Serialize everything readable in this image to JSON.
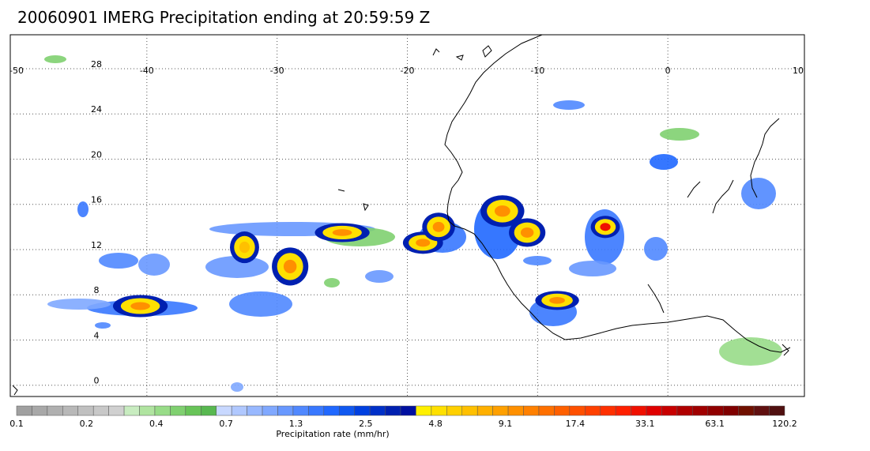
{
  "title": "20060901 IMERG Precipitation ending at 20:59:59 Z",
  "map": {
    "lon_range": [
      -50,
      10
    ],
    "lat_range": [
      -1,
      31
    ],
    "lon_ticks": [
      -50,
      -40,
      -30,
      -20,
      -10,
      0,
      10
    ],
    "lat_ticks": [
      0,
      4,
      8,
      12,
      16,
      20,
      24,
      28
    ],
    "grid": true
  },
  "rain_cells": [
    {
      "lon": -29.0,
      "lat": 10.5,
      "rx": 1.0,
      "ry": 1.2,
      "level": 4
    },
    {
      "lon": -25.0,
      "lat": 13.5,
      "rx": 1.5,
      "ry": 0.6,
      "level": 4
    },
    {
      "lon": -18.8,
      "lat": 12.6,
      "rx": 1.1,
      "ry": 0.7,
      "level": 4
    },
    {
      "lon": -17.6,
      "lat": 14.0,
      "rx": 0.9,
      "ry": 0.9,
      "level": 4
    },
    {
      "lon": -12.7,
      "lat": 15.4,
      "rx": 1.2,
      "ry": 1.0,
      "level": 4
    },
    {
      "lon": -10.8,
      "lat": 13.5,
      "rx": 1.0,
      "ry": 0.9,
      "level": 4
    },
    {
      "lon": -4.8,
      "lat": 14.0,
      "rx": 0.8,
      "ry": 0.7,
      "level": 5
    },
    {
      "lon": -8.5,
      "lat": 7.5,
      "rx": 1.2,
      "ry": 0.6,
      "level": 4
    },
    {
      "lon": -40.5,
      "lat": 7.0,
      "rx": 1.5,
      "ry": 0.7,
      "level": 4
    },
    {
      "lon": -32.5,
      "lat": 12.2,
      "rx": 0.8,
      "ry": 1.0,
      "level": 3
    }
  ],
  "colorbar": {
    "colors": [
      "#a0a0a0",
      "#a8a8a8",
      "#b0b0b0",
      "#b8b8b8",
      "#c0c0c0",
      "#c8c8c8",
      "#d0d0d0",
      "#c8ecc0",
      "#b0e4a0",
      "#98dc88",
      "#80d070",
      "#68c458",
      "#58b850",
      "#c8d8ff",
      "#b0c8ff",
      "#98b8ff",
      "#80a8ff",
      "#6898ff",
      "#5088ff",
      "#3878ff",
      "#2068ff",
      "#1058f0",
      "#0040e0",
      "#0030c8",
      "#0020b0",
      "#0010a0",
      "#fff000",
      "#ffe000",
      "#ffd000",
      "#ffc000",
      "#ffb000",
      "#ffa000",
      "#ff9000",
      "#ff8000",
      "#ff7000",
      "#ff6000",
      "#ff5000",
      "#ff4000",
      "#ff3000",
      "#ff2000",
      "#f01000",
      "#e00000",
      "#c80000",
      "#b00000",
      "#a00000",
      "#900000",
      "#800000",
      "#701000",
      "#601010",
      "#501010"
    ],
    "tick_labels": [
      "0.1",
      "0.2",
      "0.4",
      "0.7",
      "1.3",
      "2.5",
      "4.8",
      "9.1",
      "17.4",
      "33.1",
      "63.1",
      "120.2"
    ],
    "label": "Precipitation rate (mm/hr)"
  }
}
